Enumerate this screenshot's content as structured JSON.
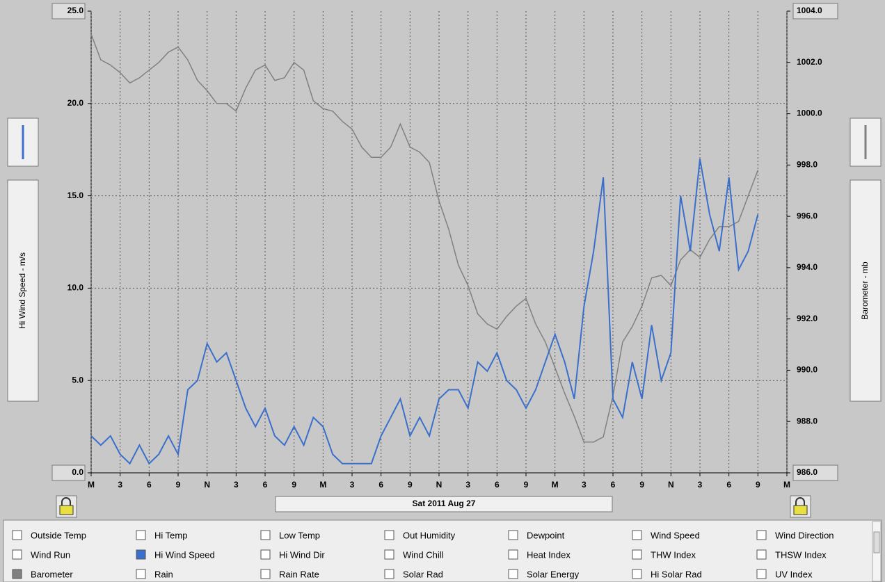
{
  "chart_data": {
    "type": "line",
    "x": [
      0,
      1,
      2,
      3,
      4,
      5,
      6,
      7,
      8,
      9,
      10,
      11,
      12,
      13,
      14,
      15,
      16,
      17,
      18,
      19,
      20,
      21,
      22,
      23,
      24,
      25,
      26,
      27,
      28,
      29,
      30,
      31,
      32,
      33,
      34,
      35,
      36,
      37,
      38,
      39,
      40,
      41,
      42,
      43,
      44,
      45,
      46,
      47,
      48,
      49,
      50,
      51,
      52,
      53,
      54,
      55,
      56,
      57,
      58,
      59,
      60,
      61,
      62,
      63,
      64,
      65,
      66,
      67,
      68,
      69
    ],
    "series": [
      {
        "name": "Hi Wind Speed",
        "color": "#3a6fcc",
        "values": [
          2.0,
          1.5,
          2.0,
          1.0,
          0.5,
          1.5,
          0.5,
          1.0,
          2.0,
          1.0,
          4.5,
          5.0,
          7.0,
          6.0,
          6.5,
          5.0,
          3.5,
          2.5,
          3.5,
          2.0,
          1.5,
          2.5,
          1.5,
          3.0,
          2.5,
          1.0,
          0.5,
          0.5,
          0.5,
          0.5,
          2.0,
          3.0,
          4.0,
          2.0,
          3.0,
          2.0,
          4.0,
          4.5,
          4.5,
          3.5,
          6.0,
          5.5,
          6.5,
          5.0,
          4.5,
          3.5,
          4.5,
          6.0,
          7.5,
          6.0,
          4.0,
          9.0,
          12.0,
          16.0,
          4.0,
          3.0,
          6.0,
          4.0,
          8.0,
          5.0,
          6.5,
          15.0,
          12.0,
          17.0,
          14.0,
          12.0,
          16.0,
          11.0,
          12.0,
          14.0
        ]
      },
      {
        "name": "Barometer",
        "color": "#808080",
        "axis": "y2",
        "values": [
          1003.1,
          1002.1,
          1001.9,
          1001.6,
          1001.2,
          1001.4,
          1001.7,
          1002.0,
          1002.4,
          1002.6,
          1002.1,
          1001.3,
          1000.9,
          1000.4,
          1000.4,
          1000.1,
          1001.0,
          1001.7,
          1001.9,
          1001.3,
          1001.4,
          1002.0,
          1001.7,
          1000.5,
          1000.2,
          1000.1,
          999.7,
          999.4,
          998.7,
          998.3,
          998.3,
          998.7,
          999.6,
          998.7,
          998.5,
          998.1,
          996.6,
          995.5,
          994.1,
          993.3,
          992.2,
          991.8,
          991.6,
          992.1,
          992.5,
          992.8,
          991.8,
          991.1,
          990.1,
          989.1,
          988.2,
          987.2,
          987.2,
          987.4,
          989.0,
          991.1,
          991.7,
          992.5,
          993.6,
          993.7,
          993.3,
          994.3,
          994.7,
          994.4,
          995.1,
          995.6,
          995.6,
          995.8,
          996.8,
          997.8
        ]
      }
    ],
    "y_label": "Hi Wind Speed - m/s",
    "y2_label": "Barometer - mb",
    "xlim": [
      0,
      72
    ],
    "xticks": [
      {
        "value": 0,
        "label": "M"
      },
      {
        "value": 3,
        "label": "3"
      },
      {
        "value": 6,
        "label": "6"
      },
      {
        "value": 9,
        "label": "9"
      },
      {
        "value": 12,
        "label": "N"
      },
      {
        "value": 15,
        "label": "3"
      },
      {
        "value": 18,
        "label": "6"
      },
      {
        "value": 21,
        "label": "9"
      },
      {
        "value": 24,
        "label": "M"
      },
      {
        "value": 27,
        "label": "3"
      },
      {
        "value": 30,
        "label": "6"
      },
      {
        "value": 33,
        "label": "9"
      },
      {
        "value": 36,
        "label": "N"
      },
      {
        "value": 39,
        "label": "3"
      },
      {
        "value": 42,
        "label": "6"
      },
      {
        "value": 45,
        "label": "9"
      },
      {
        "value": 48,
        "label": "M"
      },
      {
        "value": 51,
        "label": "3"
      },
      {
        "value": 54,
        "label": "6"
      },
      {
        "value": 57,
        "label": "9"
      },
      {
        "value": 60,
        "label": "N"
      },
      {
        "value": 63,
        "label": "3"
      },
      {
        "value": 66,
        "label": "6"
      },
      {
        "value": 69,
        "label": "9"
      },
      {
        "value": 72,
        "label": "M"
      }
    ],
    "ylim": [
      0,
      25
    ],
    "yticks": [
      {
        "value": 0,
        "label": "0.0"
      },
      {
        "value": 5,
        "label": "5.0"
      },
      {
        "value": 10,
        "label": "10.0"
      },
      {
        "value": 15,
        "label": "15.0"
      },
      {
        "value": 20,
        "label": "20.0"
      },
      {
        "value": 25,
        "label": "25.0"
      }
    ],
    "y2lim": [
      986,
      1004
    ],
    "y2ticks": [
      {
        "value": 986,
        "label": "986.0"
      },
      {
        "value": 988,
        "label": "988.0"
      },
      {
        "value": 990,
        "label": "990.0"
      },
      {
        "value": 992,
        "label": "992.0"
      },
      {
        "value": 994,
        "label": "994.0"
      },
      {
        "value": 996,
        "label": "996.0"
      },
      {
        "value": 998,
        "label": "998.0"
      },
      {
        "value": 1000,
        "label": "1000.0"
      },
      {
        "value": 1002,
        "label": "1002.0"
      },
      {
        "value": 1004,
        "label": "1004.0"
      }
    ],
    "grid": true
  },
  "date_label": "Sat 2011 Aug 27",
  "checkboxes": [
    "Outside Temp",
    "Hi Temp",
    "Low Temp",
    "Out Humidity",
    "Dewpoint",
    "Wind Speed",
    "Wind Direction",
    "Wind Run",
    "Hi Wind Speed",
    "Hi Wind Dir",
    "Wind Chill",
    "Heat Index",
    "THW Index",
    "THSW Index",
    "Barometer",
    "Rain",
    "Rain Rate",
    "Solar Rad",
    "Solar Energy",
    "Hi Solar Rad",
    "UV Index"
  ]
}
